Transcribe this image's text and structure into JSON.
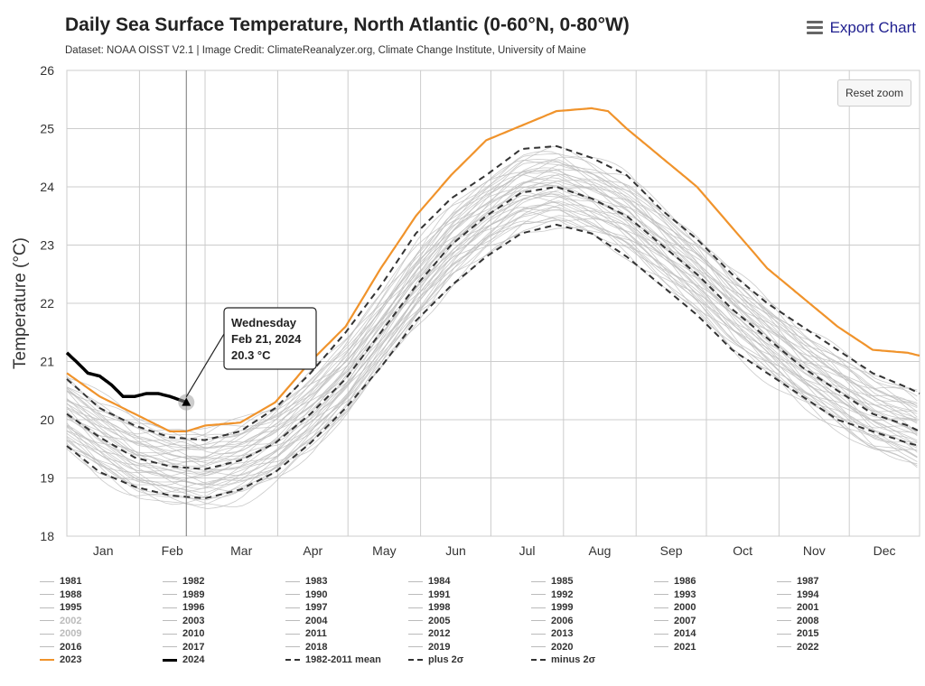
{
  "header": {
    "title": "Daily Sea Surface Temperature, North Atlantic (0-60°N, 0-80°W)",
    "subtitle": "Dataset: NOAA OISST V2.1 | Image Credit: ClimateReanalyzer.org, Climate Change Institute, University of Maine",
    "export_label": "Export Chart",
    "menu_icon": "hamburger-menu-icon"
  },
  "controls": {
    "reset_zoom_label": "Reset zoom"
  },
  "tooltip": {
    "line1": "Wednesday",
    "line2": "Feb 21, 2024",
    "line3": "20.3 °C"
  },
  "colors": {
    "y2023": "#f0932b",
    "y2024": "#000000",
    "historical": "#bdbdbd",
    "mean": "#333333",
    "grid": "#cccccc"
  },
  "chart_data": {
    "type": "line",
    "title": "Daily Sea Surface Temperature, North Atlantic (0-60°N, 0-80°W)",
    "ylabel": "Temperature (°C)",
    "xlabel": "",
    "ylim": [
      18,
      26
    ],
    "yticks": [
      18,
      19,
      20,
      21,
      22,
      23,
      24,
      25,
      26
    ],
    "x_domain_days": [
      1,
      365
    ],
    "month_labels": [
      "Jan",
      "Feb",
      "Mar",
      "Apr",
      "May",
      "Jun",
      "Jul",
      "Aug",
      "Sep",
      "Oct",
      "Nov",
      "Dec"
    ],
    "grid": true,
    "legend_position": "bottom",
    "legend": [
      "1981",
      "1982",
      "1983",
      "1984",
      "1985",
      "1986",
      "1987",
      "1988",
      "1989",
      "1990",
      "1991",
      "1992",
      "1993",
      "1994",
      "1995",
      "1996",
      "1997",
      "1998",
      "1999",
      "2000",
      "2001",
      "2002",
      "2003",
      "2004",
      "2005",
      "2006",
      "2007",
      "2008",
      "2009",
      "2010",
      "2011",
      "2012",
      "2013",
      "2014",
      "2015",
      "2016",
      "2017",
      "2018",
      "2019",
      "2020",
      "2021",
      "2022",
      "2023",
      "2024",
      "1982-2011 mean",
      "plus 2σ",
      "minus 2σ"
    ],
    "legend_faded": [
      "2002",
      "2009"
    ],
    "series": [
      {
        "name": "2023",
        "x": [
          1,
          15,
          30,
          45,
          52,
          60,
          75,
          90,
          105,
          120,
          135,
          150,
          165,
          180,
          195,
          210,
          225,
          232,
          240,
          255,
          270,
          285,
          300,
          315,
          330,
          345,
          360,
          365
        ],
        "y": [
          20.8,
          20.4,
          20.1,
          19.8,
          19.8,
          19.9,
          19.95,
          20.3,
          21.0,
          21.6,
          22.6,
          23.5,
          24.2,
          24.8,
          25.05,
          25.3,
          25.35,
          25.3,
          25.0,
          24.5,
          24.0,
          23.3,
          22.6,
          22.1,
          21.6,
          21.2,
          21.15,
          21.1
        ]
      },
      {
        "name": "2024",
        "x": [
          1,
          5,
          10,
          15,
          20,
          25,
          30,
          35,
          40,
          45,
          52
        ],
        "y": [
          21.15,
          21.0,
          20.8,
          20.75,
          20.6,
          20.4,
          20.4,
          20.45,
          20.45,
          20.4,
          20.3
        ]
      },
      {
        "name": "1982-2011 mean",
        "x": [
          1,
          15,
          30,
          45,
          60,
          75,
          90,
          105,
          120,
          135,
          150,
          165,
          180,
          195,
          210,
          225,
          240,
          255,
          270,
          285,
          300,
          315,
          330,
          345,
          360,
          365
        ],
        "y": [
          20.1,
          19.7,
          19.35,
          19.2,
          19.15,
          19.3,
          19.6,
          20.1,
          20.7,
          21.5,
          22.3,
          23.0,
          23.5,
          23.9,
          24.0,
          23.8,
          23.5,
          23.0,
          22.5,
          21.9,
          21.4,
          20.9,
          20.5,
          20.1,
          19.9,
          19.8
        ]
      },
      {
        "name": "plus 2σ",
        "x": [
          1,
          15,
          30,
          45,
          60,
          75,
          90,
          105,
          120,
          135,
          150,
          165,
          180,
          195,
          210,
          225,
          240,
          255,
          270,
          285,
          300,
          315,
          330,
          345,
          360,
          365
        ],
        "y": [
          20.7,
          20.2,
          19.9,
          19.7,
          19.65,
          19.8,
          20.2,
          20.8,
          21.5,
          22.3,
          23.2,
          23.8,
          24.2,
          24.65,
          24.7,
          24.5,
          24.2,
          23.6,
          23.1,
          22.5,
          22.0,
          21.6,
          21.2,
          20.8,
          20.55,
          20.45
        ]
      },
      {
        "name": "minus 2σ",
        "x": [
          1,
          15,
          30,
          45,
          60,
          75,
          90,
          105,
          120,
          135,
          150,
          165,
          180,
          195,
          210,
          225,
          240,
          255,
          270,
          285,
          300,
          315,
          330,
          345,
          360,
          365
        ],
        "y": [
          19.55,
          19.1,
          18.85,
          18.7,
          18.65,
          18.8,
          19.1,
          19.6,
          20.2,
          20.9,
          21.7,
          22.3,
          22.8,
          23.2,
          23.35,
          23.2,
          22.8,
          22.3,
          21.8,
          21.2,
          20.8,
          20.4,
          20.0,
          19.8,
          19.6,
          19.55
        ]
      }
    ],
    "historical_band": {
      "years": 42,
      "amplitude_c": 0.6
    }
  }
}
